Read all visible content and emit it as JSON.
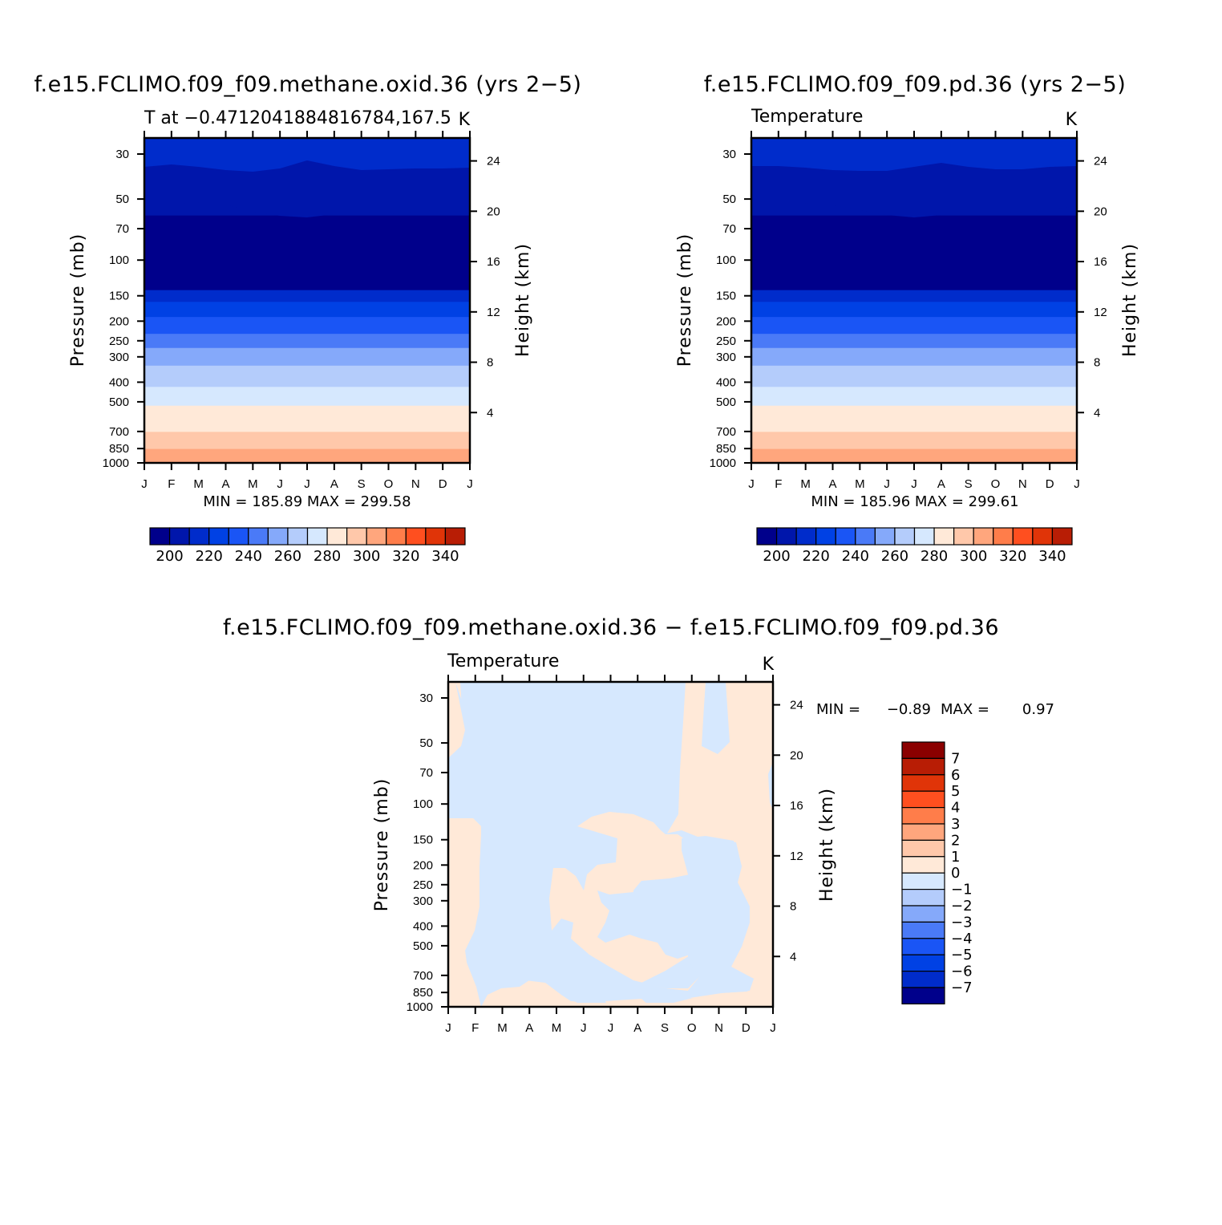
{
  "colors": {
    "levels14": [
      "#00008b",
      "#0016ab",
      "#002ccb",
      "#0041e4",
      "#1a55f5",
      "#4a7af7",
      "#85a9fa",
      "#b4ccfb",
      "#d6e8fe",
      "#ffe9d8",
      "#ffc8aa",
      "#ffa67d",
      "#ff7d4a",
      "#ff4f1f",
      "#e03408",
      "#b81d05",
      "#8b0000"
    ],
    "diff15": [
      "#00008b",
      "#0016ab",
      "#002ccb",
      "#0041e4",
      "#1a55f5",
      "#4a7af7",
      "#85a9fa",
      "#b4ccfb",
      "#d6e8fe",
      "#ffe9d8",
      "#ffc8aa",
      "#ffa67d",
      "#ff7d4a",
      "#ff4f1f",
      "#e03408",
      "#b81d05",
      "#8b0000"
    ]
  },
  "chart_data": [
    {
      "type": "heatmap",
      "title": "f.e15.FCLIMO.f09_f09.methane.oxid.36 (yrs 2−5)",
      "subtitle_left": "T at −0.4712041884816784,167.5",
      "subtitle_right": "K",
      "ylabel": "Pressure (mb)",
      "ylabel2": "Height (km)",
      "x_ticks": [
        "J",
        "F",
        "M",
        "A",
        "M",
        "J",
        "J",
        "A",
        "S",
        "O",
        "N",
        "D",
        "J"
      ],
      "y_ticks": [
        "30",
        "50",
        "70",
        "100",
        "150",
        "200",
        "250",
        "300",
        "400",
        "500",
        "700",
        "850",
        "1000"
      ],
      "y2_ticks": [
        "24",
        "20",
        "16",
        "12",
        "8",
        "4"
      ],
      "ylim": [
        1000,
        25
      ],
      "min_max": "MIN = 185.89  MAX = 299.58",
      "colorbar_labels": [
        "200",
        "220",
        "240",
        "260",
        "280",
        "300",
        "320",
        "340"
      ],
      "colorbar_levels": [
        190,
        200,
        210,
        220,
        230,
        240,
        250,
        260,
        270,
        280,
        290,
        300,
        310,
        320,
        330,
        340,
        350
      ]
    },
    {
      "type": "heatmap",
      "title": "f.e15.FCLIMO.f09_f09.pd.36 (yrs 2−5)",
      "subtitle_left": "Temperature",
      "subtitle_right": "K",
      "ylabel": "Pressure (mb)",
      "ylabel2": "Height (km)",
      "x_ticks": [
        "J",
        "F",
        "M",
        "A",
        "M",
        "J",
        "J",
        "A",
        "S",
        "O",
        "N",
        "D",
        "J"
      ],
      "y_ticks": [
        "30",
        "50",
        "70",
        "100",
        "150",
        "200",
        "250",
        "300",
        "400",
        "500",
        "700",
        "850",
        "1000"
      ],
      "y2_ticks": [
        "24",
        "20",
        "16",
        "12",
        "8",
        "4"
      ],
      "ylim": [
        1000,
        25
      ],
      "min_max": "MIN = 185.96  MAX = 299.61",
      "colorbar_labels": [
        "200",
        "220",
        "240",
        "260",
        "280",
        "300",
        "320",
        "340"
      ],
      "colorbar_levels": [
        190,
        200,
        210,
        220,
        230,
        240,
        250,
        260,
        270,
        280,
        290,
        300,
        310,
        320,
        330,
        340,
        350
      ]
    },
    {
      "type": "heatmap",
      "title": "f.e15.FCLIMO.f09_f09.methane.oxid.36 − f.e15.FCLIMO.f09_f09.pd.36",
      "subtitle_left": "Temperature",
      "subtitle_right": "K",
      "ylabel": "Pressure (mb)",
      "ylabel2": "Height (km)",
      "x_ticks": [
        "J",
        "F",
        "M",
        "A",
        "M",
        "J",
        "J",
        "A",
        "S",
        "O",
        "N",
        "D",
        "J"
      ],
      "y_ticks": [
        "30",
        "50",
        "70",
        "100",
        "150",
        "200",
        "250",
        "300",
        "400",
        "500",
        "700",
        "850",
        "1000"
      ],
      "y2_ticks": [
        "24",
        "20",
        "16",
        "12",
        "8",
        "4"
      ],
      "ylim": [
        1000,
        25
      ],
      "min_label": "MIN =",
      "min_value": "−0.89",
      "max_label": "MAX =",
      "max_value": "0.97",
      "colorbar_labels": [
        "7",
        "6",
        "5",
        "4",
        "3",
        "2",
        "1",
        "0",
        "−1",
        "−2",
        "−3",
        "−4",
        "−5",
        "−6",
        "−7"
      ]
    }
  ]
}
